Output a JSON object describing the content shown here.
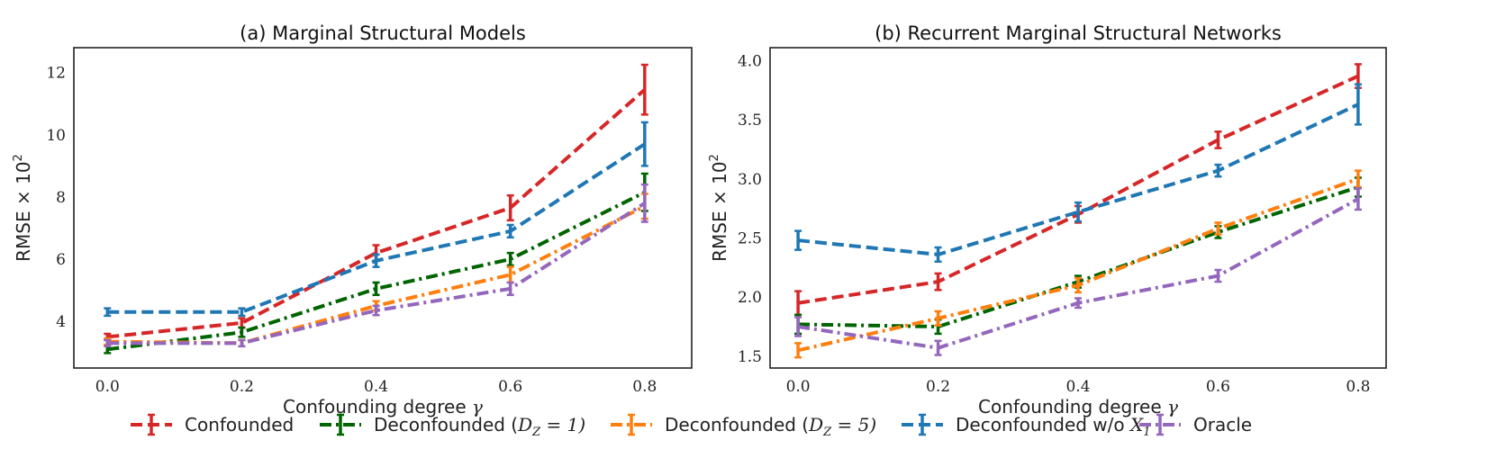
{
  "chart_data": [
    {
      "type": "line",
      "title": "(a) Marginal Structural Models",
      "xlabel": "Confounding degree γ",
      "ylabel": "RMSE × 10²",
      "x": [
        0.0,
        0.2,
        0.4,
        0.6,
        0.8
      ],
      "xticks": [
        "0.0",
        "0.2",
        "0.4",
        "0.6",
        "0.8"
      ],
      "yticks": [
        4,
        6,
        8,
        10,
        12
      ],
      "ytick_labels": [
        "4",
        "6",
        "8",
        "10",
        "12"
      ],
      "xlim": [
        -0.05,
        0.87
      ],
      "ylim": [
        2.5,
        12.8
      ],
      "series": [
        {
          "name": "Confounded",
          "values": [
            3.5,
            3.95,
            6.2,
            7.65,
            11.45
          ],
          "err": [
            0.1,
            0.15,
            0.25,
            0.4,
            0.8
          ]
        },
        {
          "name": "Deconfounded (D_Z = 1)",
          "values": [
            3.1,
            3.65,
            5.05,
            6.0,
            8.15
          ],
          "err": [
            0.12,
            0.15,
            0.2,
            0.2,
            0.6
          ]
        },
        {
          "name": "Deconfounded (D_Z = 5)",
          "values": [
            3.35,
            3.3,
            4.5,
            5.5,
            7.7
          ],
          "err": [
            0.1,
            0.1,
            0.15,
            0.25,
            0.4
          ]
        },
        {
          "name": "Deconfounded w/o X_1",
          "values": [
            4.3,
            4.3,
            5.95,
            6.9,
            9.7
          ],
          "err": [
            0.12,
            0.12,
            0.2,
            0.2,
            0.7
          ]
        },
        {
          "name": "Oracle",
          "values": [
            3.3,
            3.3,
            4.35,
            5.05,
            7.8
          ],
          "err": [
            0.1,
            0.1,
            0.15,
            0.2,
            0.6
          ]
        }
      ]
    },
    {
      "type": "line",
      "title": "(b) Recurrent Marginal Structural Networks",
      "xlabel": "Confounding degree γ",
      "ylabel": "RMSE × 10²",
      "x": [
        0.0,
        0.2,
        0.4,
        0.6,
        0.8
      ],
      "xticks": [
        "0.0",
        "0.2",
        "0.4",
        "0.6",
        "0.8"
      ],
      "yticks": [
        1.5,
        2.0,
        2.5,
        3.0,
        3.5,
        4.0
      ],
      "ytick_labels": [
        "1.5",
        "2.0",
        "2.5",
        "3.0",
        "3.5",
        "4.0"
      ],
      "xlim": [
        -0.04,
        0.84
      ],
      "ylim": [
        1.4,
        4.11
      ],
      "series": [
        {
          "name": "Confounded",
          "values": [
            1.95,
            2.13,
            2.7,
            3.33,
            3.87
          ],
          "err": [
            0.1,
            0.07,
            0.07,
            0.07,
            0.1
          ]
        },
        {
          "name": "Deconfounded (D_Z = 1)",
          "values": [
            1.77,
            1.75,
            2.13,
            2.55,
            2.93
          ],
          "err": [
            0.08,
            0.06,
            0.05,
            0.05,
            0.08
          ]
        },
        {
          "name": "Deconfounded (D_Z = 5)",
          "values": [
            1.55,
            1.82,
            2.1,
            2.58,
            3.0
          ],
          "err": [
            0.06,
            0.06,
            0.06,
            0.05,
            0.07
          ]
        },
        {
          "name": "Deconfounded w/o X_1",
          "values": [
            2.48,
            2.36,
            2.72,
            3.07,
            3.63
          ],
          "err": [
            0.08,
            0.06,
            0.08,
            0.05,
            0.17
          ]
        },
        {
          "name": "Oracle",
          "values": [
            1.75,
            1.57,
            1.95,
            2.18,
            2.83
          ],
          "err": [
            0.08,
            0.06,
            0.04,
            0.05,
            0.09
          ]
        }
      ]
    }
  ],
  "legend": [
    {
      "label": "Confounded",
      "color": "#d62728",
      "dash": "dashed"
    },
    {
      "label": "Deconfounded (D_Z = 1)",
      "color": "#006400",
      "dash": "dashdot"
    },
    {
      "label": "Deconfounded (D_Z = 5)",
      "color": "#ff7f0e",
      "dash": "dashdot"
    },
    {
      "label": "Deconfounded w/o X_1",
      "color": "#1f77b4",
      "dash": "dashed"
    },
    {
      "label": "Oracle",
      "color": "#9467bd",
      "dash": "dashdot"
    }
  ]
}
